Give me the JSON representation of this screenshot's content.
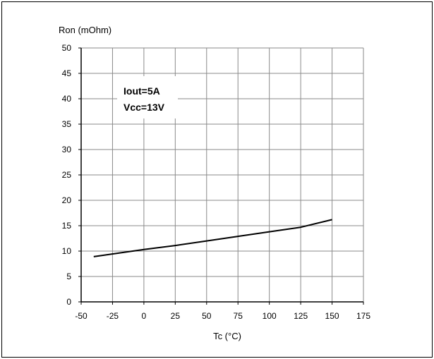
{
  "chart_data": {
    "type": "line",
    "ylabel": "Ron (mOhm)",
    "xlabel": "Tc (°C)",
    "xlim": [
      -50,
      175
    ],
    "ylim": [
      0,
      50
    ],
    "x_ticks": [
      -50,
      -25,
      0,
      25,
      50,
      75,
      100,
      125,
      150,
      175
    ],
    "y_ticks": [
      0,
      5,
      10,
      15,
      20,
      25,
      30,
      35,
      40,
      45,
      50
    ],
    "grid": true,
    "annotations": [
      "Iout=5A",
      "Vcc=13V"
    ],
    "series": [
      {
        "color": "#000000",
        "points": [
          {
            "x": -40,
            "y": 8.9
          },
          {
            "x": 0,
            "y": 10.3
          },
          {
            "x": 25,
            "y": 11.1
          },
          {
            "x": 50,
            "y": 12.0
          },
          {
            "x": 75,
            "y": 12.9
          },
          {
            "x": 100,
            "y": 13.8
          },
          {
            "x": 125,
            "y": 14.7
          },
          {
            "x": 150,
            "y": 16.2
          }
        ]
      }
    ]
  }
}
